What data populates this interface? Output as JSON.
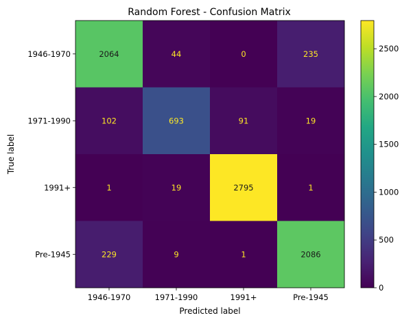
{
  "chart_data": {
    "type": "heatmap",
    "title": "Random Forest - Confusion Matrix",
    "xlabel": "Predicted label",
    "ylabel": "True label",
    "x_categories": [
      "1946-1970",
      "1971-1990",
      "1991+",
      "Pre-1945"
    ],
    "y_categories": [
      "1946-1970",
      "1971-1990",
      "1991+",
      "Pre-1945"
    ],
    "values": [
      [
        2064,
        44,
        0,
        235
      ],
      [
        102,
        693,
        91,
        19
      ],
      [
        1,
        19,
        2795,
        1
      ],
      [
        229,
        9,
        1,
        2086
      ]
    ],
    "colormap": "viridis",
    "colorbar": {
      "min": 0,
      "max": 2795,
      "ticks": [
        0,
        500,
        1000,
        1500,
        2000,
        2500
      ]
    },
    "text_colors": {
      "on_dark": "#fde725",
      "on_light": "#1a1a1a"
    }
  }
}
